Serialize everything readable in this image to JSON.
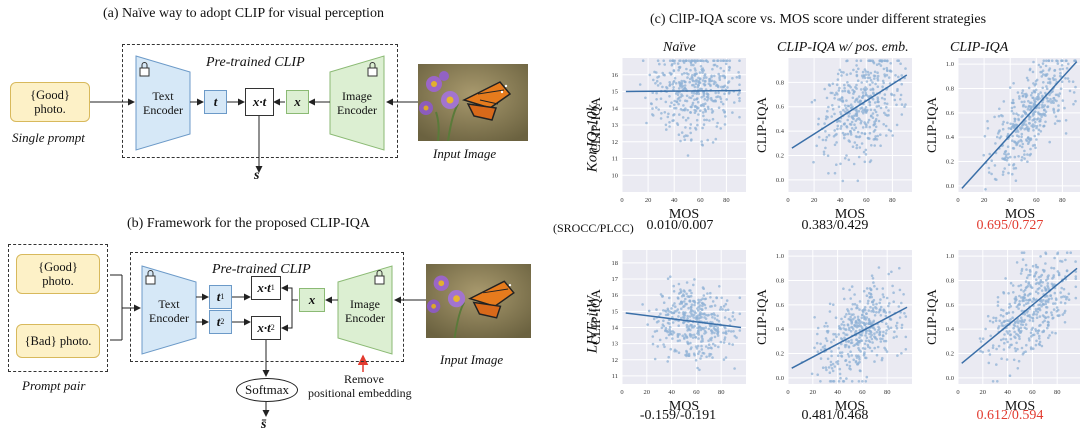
{
  "panel_a": {
    "title": "(a) Naïve way to adopt CLIP for visual perception",
    "pretrained": "Pre-trained CLIP",
    "prompt_line1": "{Good}",
    "prompt_line2": "photo.",
    "prompt_caption": "Single prompt",
    "text_encoder_1": "Text",
    "text_encoder_2": "Encoder",
    "image_encoder_1": "Image",
    "image_encoder_2": "Encoder",
    "t": "t",
    "xt": "x·t",
    "x": "x",
    "s": "s",
    "input_caption": "Input Image"
  },
  "panel_b": {
    "title": "(b) Framework for the proposed CLIP-IQA",
    "pretrained": "Pre-trained CLIP",
    "good_line1": "{Good}",
    "good_line2": "photo.",
    "bad": "{Bad} photo.",
    "prompt_caption": "Prompt pair",
    "text_encoder_1": "Text",
    "text_encoder_2": "Encoder",
    "image_encoder_1": "Image",
    "image_encoder_2": "Encoder",
    "t1": "t",
    "t2": "t",
    "sub1": "1",
    "sub2": "2",
    "xt1": "x·t",
    "xt2": "x·t",
    "x": "x",
    "softmax": "Softmax",
    "s_bar": "s̄",
    "remove_1": "Remove",
    "remove_2": "positional embedding",
    "input_caption": "Input Image"
  },
  "panel_c": {
    "title": "(c) ClIP-IQA score vs. MOS score under different strategies",
    "col_titles": [
      "Naïve",
      "CLIP-IQA w/ pos. emb.",
      "CLIP-IQA"
    ],
    "row_labels": [
      "KonIQ-10k",
      "LIVE-itW"
    ],
    "metric_label": "(SROCC/PLCC)",
    "ylabel": "CLIP-IQA",
    "xlabel": "MOS",
    "scores_row1": [
      "0.010/0.007",
      "0.383/0.429",
      "0.695/0.727"
    ],
    "scores_row2": [
      "-0.159/-0.191",
      "0.481/0.468",
      "0.612/0.594"
    ],
    "score_colors": [
      "#111111",
      "#111111",
      "#e23b2f"
    ]
  },
  "chart_data": [
    {
      "type": "scatter",
      "dataset": "KonIQ-10k",
      "title": "Naïve",
      "xlabel": "MOS",
      "ylabel": "CLIP-IQA",
      "xlim": [
        0,
        95
      ],
      "ylim": [
        9,
        17
      ],
      "xticks": [
        0,
        20,
        40,
        60,
        80
      ],
      "yticks": [
        10,
        11,
        12,
        13,
        14,
        15,
        16
      ],
      "fit": [
        15.0,
        15.05
      ],
      "spread": 1.3,
      "score": "0.010/0.007"
    },
    {
      "type": "scatter",
      "dataset": "KonIQ-10k",
      "title": "CLIP-IQA w/ pos. emb.",
      "xlabel": "MOS",
      "ylabel": "CLIP-IQA",
      "xlim": [
        0,
        95
      ],
      "ylim": [
        -0.1,
        1.0
      ],
      "xticks": [
        0,
        20,
        40,
        60,
        80
      ],
      "yticks": [
        0.0,
        0.2,
        0.4,
        0.6,
        0.8
      ],
      "fit": [
        0.26,
        0.86
      ],
      "spread": 0.22,
      "score": "0.383/0.429"
    },
    {
      "type": "scatter",
      "dataset": "KonIQ-10k",
      "title": "CLIP-IQA",
      "xlabel": "MOS",
      "ylabel": "CLIP-IQA",
      "xlim": [
        0,
        95
      ],
      "ylim": [
        -0.05,
        1.05
      ],
      "xticks": [
        0,
        20,
        40,
        60,
        80
      ],
      "yticks": [
        0.0,
        0.2,
        0.4,
        0.6,
        0.8,
        1.0
      ],
      "fit": [
        -0.02,
        1.02
      ],
      "spread": 0.17,
      "score": "0.695/0.727"
    },
    {
      "type": "scatter",
      "dataset": "LIVE-itW",
      "title": "Naïve",
      "xlabel": "MOS",
      "ylabel": "CLIP-IQA",
      "xlim": [
        0,
        100
      ],
      "ylim": [
        10.5,
        18.8
      ],
      "xticks": [
        0,
        20,
        40,
        60,
        80
      ],
      "yticks": [
        11,
        12,
        13,
        14,
        15,
        16,
        17,
        18
      ],
      "fit": [
        14.9,
        14.0
      ],
      "spread": 1.1,
      "score": "-0.159/-0.191"
    },
    {
      "type": "scatter",
      "dataset": "LIVE-itW",
      "title": "CLIP-IQA w/ pos. emb.",
      "xlabel": "MOS",
      "ylabel": "CLIP-IQA",
      "xlim": [
        0,
        100
      ],
      "ylim": [
        -0.05,
        1.05
      ],
      "xticks": [
        0,
        20,
        40,
        60,
        80
      ],
      "yticks": [
        0.0,
        0.2,
        0.4,
        0.6,
        0.8,
        1.0
      ],
      "fit": [
        0.08,
        0.58
      ],
      "spread": 0.17,
      "score": "0.481/0.468"
    },
    {
      "type": "scatter",
      "dataset": "LIVE-itW",
      "title": "CLIP-IQA",
      "xlabel": "MOS",
      "ylabel": "CLIP-IQA",
      "xlim": [
        0,
        100
      ],
      "ylim": [
        -0.05,
        1.05
      ],
      "xticks": [
        0,
        20,
        40,
        60,
        80
      ],
      "yticks": [
        0.0,
        0.2,
        0.4,
        0.6,
        0.8,
        1.0
      ],
      "fit": [
        0.12,
        0.9
      ],
      "spread": 0.19,
      "score": "0.612/0.594"
    }
  ]
}
